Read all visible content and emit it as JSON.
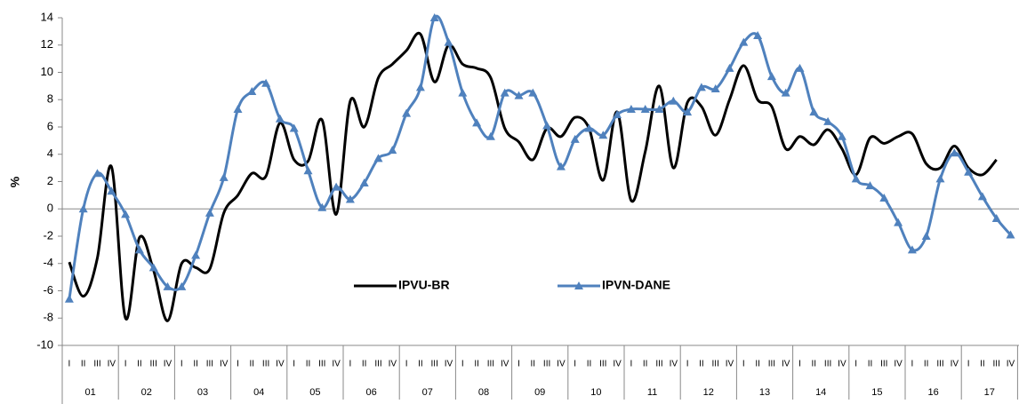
{
  "chart_data": {
    "type": "line",
    "y_label": "%",
    "categories": [
      "I",
      "II",
      "III",
      "IV",
      "I",
      "II",
      "III",
      "IV",
      "I",
      "II",
      "III",
      "IV",
      "I",
      "II",
      "III",
      "IV",
      "I",
      "II",
      "III",
      "IV",
      "I",
      "II",
      "III",
      "IV",
      "I",
      "II",
      "III",
      "IV",
      "I",
      "II",
      "III",
      "IV",
      "I",
      "II",
      "III",
      "IV",
      "I",
      "II",
      "III",
      "IV",
      "I",
      "II",
      "III",
      "IV",
      "I",
      "II",
      "III",
      "IV",
      "I",
      "II",
      "III",
      "IV",
      "I",
      "II",
      "III",
      "IV",
      "I",
      "II",
      "III",
      "IV",
      "I",
      "II",
      "III",
      "IV",
      "I",
      "II",
      "III",
      "IV"
    ],
    "years": [
      "01",
      "02",
      "03",
      "04",
      "05",
      "06",
      "07",
      "08",
      "09",
      "10",
      "11",
      "12",
      "13",
      "14",
      "15",
      "16",
      "17"
    ],
    "series": [
      {
        "name": "IPVU-BR",
        "color": "#000000",
        "marker": "none",
        "values": [
          -3.9,
          -6.4,
          -3.6,
          3.1,
          -8.0,
          -2.1,
          -4.5,
          -8.2,
          -4.0,
          -4.3,
          -4.4,
          -0.3,
          1.0,
          2.6,
          2.4,
          6.3,
          3.6,
          3.5,
          6.5,
          -0.4,
          7.9,
          6.0,
          9.6,
          10.6,
          11.6,
          12.8,
          9.3,
          12.0,
          10.6,
          10.3,
          9.6,
          5.9,
          4.9,
          3.6,
          5.9,
          5.3,
          6.7,
          5.9,
          2.1,
          7.1,
          0.6,
          4.2,
          9.0,
          3.0,
          7.8,
          7.5,
          5.4,
          8.0,
          10.5,
          8.0,
          7.5,
          4.4,
          5.3,
          4.7,
          5.8,
          4.4,
          2.5,
          5.2,
          4.8,
          5.3,
          5.5,
          3.3,
          3.0,
          4.6,
          3.0,
          2.5,
          3.6,
          null
        ]
      },
      {
        "name": "IPVN-DANE",
        "color": "#4f81bd",
        "marker": "triangle",
        "values": [
          -6.6,
          0,
          2.6,
          1.3,
          -0.4,
          -3.0,
          -4.3,
          -5.7,
          -5.7,
          -3.4,
          -0.3,
          2.3,
          7.3,
          8.6,
          9.2,
          6.6,
          5.9,
          2.8,
          0.1,
          1.6,
          0.7,
          1.9,
          3.7,
          4.3,
          7.0,
          8.9,
          14.0,
          12.2,
          8.5,
          6.3,
          5.3,
          8.5,
          8.3,
          8.5,
          6.1,
          3.1,
          5.1,
          5.9,
          5.4,
          6.9,
          7.3,
          7.3,
          7.3,
          7.9,
          7.1,
          8.9,
          8.8,
          10.3,
          12.2,
          12.7,
          9.7,
          8.5,
          10.3,
          7.1,
          6.4,
          5.3,
          2.2,
          1.7,
          0.8,
          -1.0,
          -3.0,
          -2.0,
          2.2,
          4.1,
          2.7,
          0.9,
          -0.7,
          -1.9
        ]
      }
    ],
    "ylim": [
      -10,
      14
    ],
    "yticks": [
      -10,
      -8,
      -6,
      -4,
      -2,
      0,
      2,
      4,
      6,
      8,
      10,
      12,
      14
    ],
    "legend_position": "center"
  }
}
